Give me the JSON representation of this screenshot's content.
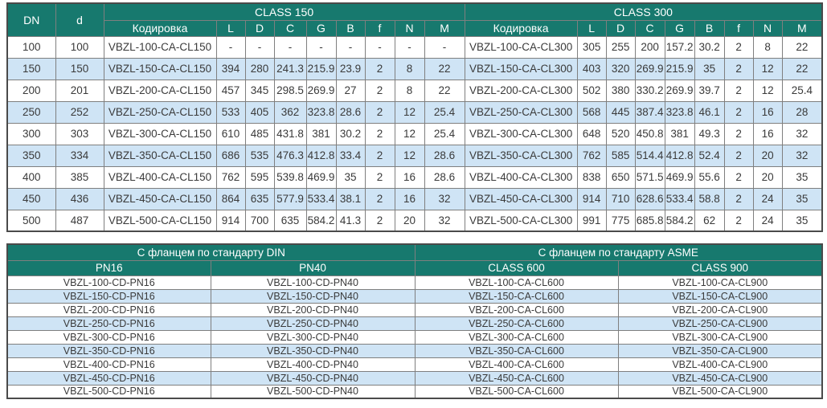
{
  "colors": {
    "header_bg": "#17796E",
    "alt_row_bg": "#CFE4F5",
    "row_bg": "#FFFFFF",
    "grid_line": "#7F7F7F",
    "outer_border": "#4A4A4A",
    "header_text": "#FFFFFF",
    "body_text": "#3A3A3A"
  },
  "top_table": {
    "col_dn": "DN",
    "col_d": "d",
    "groups": [
      "CLASS 150",
      "CLASS 300"
    ],
    "sub_headers": [
      "Кодировка",
      "L",
      "D",
      "C",
      "G",
      "B",
      "f",
      "N",
      "M"
    ],
    "rows": [
      {
        "dn": "100",
        "d": "100",
        "cl150": [
          "VBZL-100-CA-CL150",
          "-",
          "-",
          "-",
          "-",
          "-",
          "-",
          "-",
          "-"
        ],
        "cl300": [
          "VBZL-100-CA-CL300",
          "305",
          "255",
          "200",
          "157.2",
          "30.2",
          "2",
          "8",
          "22"
        ]
      },
      {
        "dn": "150",
        "d": "150",
        "cl150": [
          "VBZL-150-CA-CL150",
          "394",
          "280",
          "241.3",
          "215.9",
          "23.9",
          "2",
          "8",
          "22"
        ],
        "cl300": [
          "VBZL-150-CA-CL300",
          "403",
          "320",
          "269.9",
          "215.9",
          "35",
          "2",
          "12",
          "22"
        ]
      },
      {
        "dn": "200",
        "d": "201",
        "cl150": [
          "VBZL-200-CA-CL150",
          "457",
          "345",
          "298.5",
          "269.9",
          "27",
          "2",
          "8",
          "22"
        ],
        "cl300": [
          "VBZL-200-CA-CL300",
          "502",
          "380",
          "330.2",
          "269.9",
          "39.7",
          "2",
          "12",
          "25.4"
        ]
      },
      {
        "dn": "250",
        "d": "252",
        "cl150": [
          "VBZL-250-CA-CL150",
          "533",
          "405",
          "362",
          "323.8",
          "28.6",
          "2",
          "12",
          "25.4"
        ],
        "cl300": [
          "VBZL-250-CA-CL300",
          "568",
          "445",
          "387.4",
          "323.8",
          "46.1",
          "2",
          "16",
          "28"
        ]
      },
      {
        "dn": "300",
        "d": "303",
        "cl150": [
          "VBZL-300-CA-CL150",
          "610",
          "485",
          "431.8",
          "381",
          "30.2",
          "2",
          "12",
          "25.4"
        ],
        "cl300": [
          "VBZL-300-CA-CL300",
          "648",
          "520",
          "450.8",
          "381",
          "49.3",
          "2",
          "16",
          "32"
        ]
      },
      {
        "dn": "350",
        "d": "334",
        "cl150": [
          "VBZL-350-CA-CL150",
          "686",
          "535",
          "476.3",
          "412.8",
          "33.4",
          "2",
          "12",
          "28.6"
        ],
        "cl300": [
          "VBZL-350-CA-CL300",
          "762",
          "585",
          "514.4",
          "412.8",
          "52.4",
          "2",
          "20",
          "32"
        ]
      },
      {
        "dn": "400",
        "d": "385",
        "cl150": [
          "VBZL-400-CA-CL150",
          "762",
          "595",
          "539.8",
          "469.9",
          "35",
          "2",
          "16",
          "28.6"
        ],
        "cl300": [
          "VBZL-400-CA-CL300",
          "838",
          "650",
          "571.5",
          "469.9",
          "55.6",
          "2",
          "20",
          "35"
        ]
      },
      {
        "dn": "450",
        "d": "436",
        "cl150": [
          "VBZL-450-CA-CL150",
          "864",
          "635",
          "577.9",
          "533.4",
          "38.1",
          "2",
          "16",
          "32"
        ],
        "cl300": [
          "VBZL-450-CA-CL300",
          "914",
          "710",
          "628.6",
          "533.4",
          "58.8",
          "2",
          "24",
          "35"
        ]
      },
      {
        "dn": "500",
        "d": "487",
        "cl150": [
          "VBZL-500-CA-CL150",
          "914",
          "700",
          "635",
          "584.2",
          "41.3",
          "2",
          "20",
          "32"
        ],
        "cl300": [
          "VBZL-500-CA-CL300",
          "991",
          "775",
          "685.8",
          "584.2",
          "62",
          "2",
          "24",
          "35"
        ]
      }
    ]
  },
  "bottom_table": {
    "groups": [
      "С фланцем по стандарту DIN",
      "С фланцем по стандарту ASME"
    ],
    "sub_headers": [
      "PN16",
      "PN40",
      "CLASS 600",
      "CLASS 900"
    ],
    "rows": [
      [
        "VBZL-100-CD-PN16",
        "VBZL-100-CD-PN40",
        "VBZL-100-CA-CL600",
        "VBZL-100-CA-CL900"
      ],
      [
        "VBZL-150-CD-PN16",
        "VBZL-150-CD-PN40",
        "VBZL-150-CA-CL600",
        "VBZL-150-CA-CL900"
      ],
      [
        "VBZL-200-CD-PN16",
        "VBZL-200-CD-PN40",
        "VBZL-200-CA-CL600",
        "VBZL-200-CA-CL900"
      ],
      [
        "VBZL-250-CD-PN16",
        "VBZL-250-CD-PN40",
        "VBZL-250-CA-CL600",
        "VBZL-250-CA-CL900"
      ],
      [
        "VBZL-300-CD-PN16",
        "VBZL-300-CD-PN40",
        "VBZL-300-CA-CL600",
        "VBZL-300-CA-CL900"
      ],
      [
        "VBZL-350-CD-PN16",
        "VBZL-350-CD-PN40",
        "VBZL-350-CA-CL600",
        "VBZL-350-CA-CL900"
      ],
      [
        "VBZL-400-CD-PN16",
        "VBZL-400-CD-PN40",
        "VBZL-400-CA-CL600",
        "VBZL-400-CA-CL900"
      ],
      [
        "VBZL-450-CD-PN16",
        "VBZL-450-CD-PN40",
        "VBZL-450-CA-CL600",
        "VBZL-450-CA-CL900"
      ],
      [
        "VBZL-500-CD-PN16",
        "VBZL-500-CD-PN40",
        "VBZL-500-CA-CL600",
        "VBZL-500-CA-CL900"
      ]
    ]
  }
}
